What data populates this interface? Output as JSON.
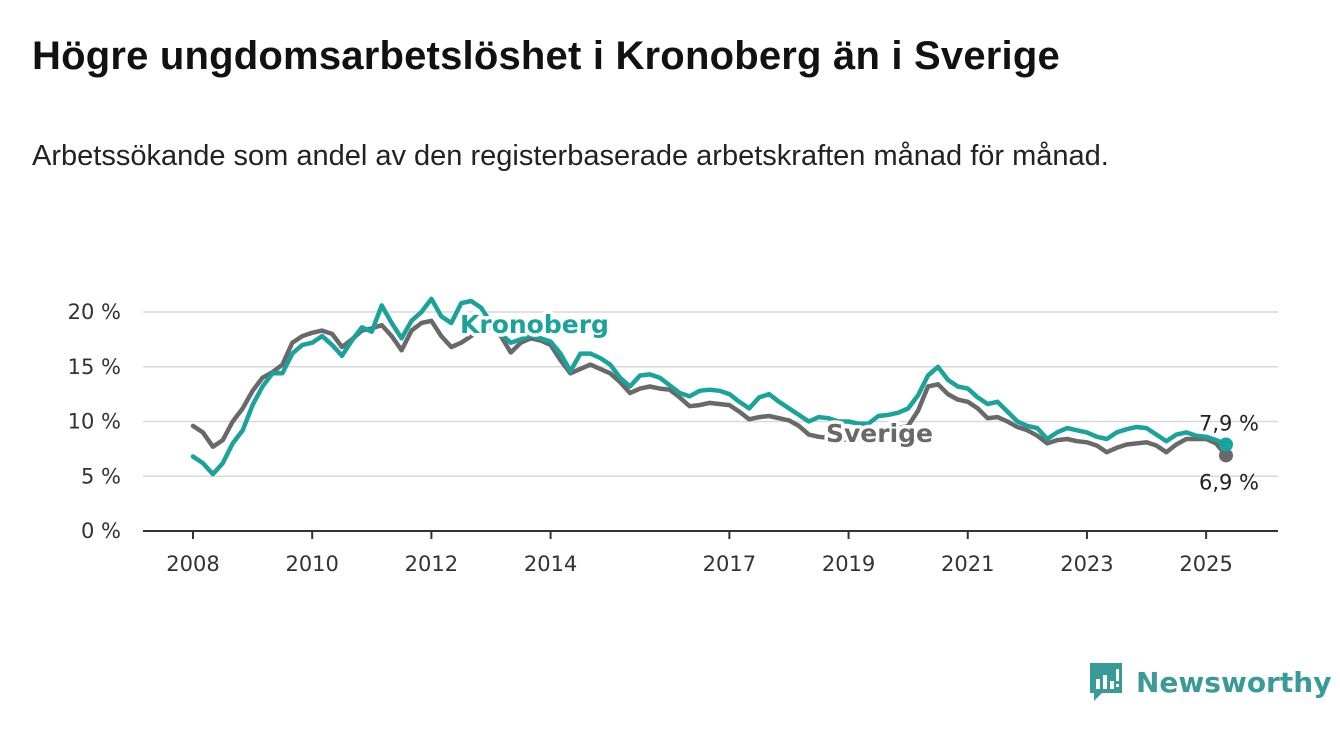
{
  "title": "Högre ungdomsarbetslöshet i Kronoberg än i Sverige",
  "subtitle": "Arbetssökande som andel av den registerbaserade arbetskraften månad för månad.",
  "brand": {
    "name": "Newsworthy",
    "icon": "newsworthy-logo-icon",
    "color": "#3a9a98"
  },
  "chart_data": {
    "type": "line",
    "x_unit": "month",
    "ylim": [
      0,
      20
    ],
    "yticks": [
      0,
      5,
      10,
      15,
      20
    ],
    "ytick_labels": [
      "0 %",
      "5 %",
      "10 %",
      "15 %",
      "20 %"
    ],
    "xticks": [
      "2008",
      "2010",
      "2012",
      "2014",
      "2017",
      "2019",
      "2021",
      "2023",
      "2025"
    ],
    "grid": true,
    "series": [
      {
        "name": "Sverige",
        "color": "#696969",
        "end_label": "6,9 %",
        "points": [
          [
            "2008-01",
            9.6
          ],
          [
            "2008-03",
            9.0
          ],
          [
            "2008-05",
            7.7
          ],
          [
            "2008-07",
            8.3
          ],
          [
            "2008-09",
            10.0
          ],
          [
            "2008-11",
            11.2
          ],
          [
            "2009-01",
            12.8
          ],
          [
            "2009-03",
            14.0
          ],
          [
            "2009-05",
            14.5
          ],
          [
            "2009-07",
            15.2
          ],
          [
            "2009-09",
            17.2
          ],
          [
            "2009-11",
            17.8
          ],
          [
            "2010-01",
            18.1
          ],
          [
            "2010-03",
            18.3
          ],
          [
            "2010-05",
            18.0
          ],
          [
            "2010-07",
            16.8
          ],
          [
            "2010-09",
            17.5
          ],
          [
            "2010-11",
            18.3
          ],
          [
            "2011-01",
            18.5
          ],
          [
            "2011-03",
            18.8
          ],
          [
            "2011-05",
            17.8
          ],
          [
            "2011-07",
            16.5
          ],
          [
            "2011-09",
            18.3
          ],
          [
            "2011-11",
            19.0
          ],
          [
            "2012-01",
            19.2
          ],
          [
            "2012-03",
            17.8
          ],
          [
            "2012-05",
            16.8
          ],
          [
            "2012-07",
            17.2
          ],
          [
            "2012-09",
            17.8
          ],
          [
            "2012-11",
            18.4
          ],
          [
            "2013-01",
            18.6
          ],
          [
            "2013-03",
            17.8
          ],
          [
            "2013-05",
            16.3
          ],
          [
            "2013-07",
            17.2
          ],
          [
            "2013-09",
            17.6
          ],
          [
            "2013-11",
            17.4
          ],
          [
            "2014-01",
            17.0
          ],
          [
            "2014-03",
            15.6
          ],
          [
            "2014-05",
            14.4
          ],
          [
            "2014-07",
            14.8
          ],
          [
            "2014-09",
            15.2
          ],
          [
            "2014-11",
            14.8
          ],
          [
            "2015-01",
            14.4
          ],
          [
            "2015-03",
            13.6
          ],
          [
            "2015-05",
            12.6
          ],
          [
            "2015-07",
            13.0
          ],
          [
            "2015-09",
            13.2
          ],
          [
            "2015-11",
            13.0
          ],
          [
            "2016-01",
            12.9
          ],
          [
            "2016-03",
            12.2
          ],
          [
            "2016-05",
            11.4
          ],
          [
            "2016-07",
            11.5
          ],
          [
            "2016-09",
            11.7
          ],
          [
            "2016-11",
            11.6
          ],
          [
            "2017-01",
            11.5
          ],
          [
            "2017-03",
            10.9
          ],
          [
            "2017-05",
            10.2
          ],
          [
            "2017-07",
            10.4
          ],
          [
            "2017-09",
            10.5
          ],
          [
            "2017-11",
            10.3
          ],
          [
            "2018-01",
            10.1
          ],
          [
            "2018-03",
            9.6
          ],
          [
            "2018-05",
            8.8
          ],
          [
            "2018-07",
            8.6
          ],
          [
            "2018-09",
            8.5
          ],
          [
            "2018-11",
            8.4
          ],
          [
            "2019-01",
            8.3
          ],
          [
            "2019-03",
            8.4
          ],
          [
            "2019-05",
            8.6
          ],
          [
            "2019-07",
            8.9
          ],
          [
            "2019-09",
            9.3
          ],
          [
            "2019-11",
            9.4
          ],
          [
            "2020-01",
            9.6
          ],
          [
            "2020-03",
            11.0
          ],
          [
            "2020-05",
            13.2
          ],
          [
            "2020-07",
            13.4
          ],
          [
            "2020-09",
            12.5
          ],
          [
            "2020-11",
            12.0
          ],
          [
            "2021-01",
            11.8
          ],
          [
            "2021-03",
            11.2
          ],
          [
            "2021-05",
            10.3
          ],
          [
            "2021-07",
            10.4
          ],
          [
            "2021-09",
            10.0
          ],
          [
            "2021-11",
            9.5
          ],
          [
            "2022-01",
            9.2
          ],
          [
            "2022-03",
            8.7
          ],
          [
            "2022-05",
            8.0
          ],
          [
            "2022-07",
            8.3
          ],
          [
            "2022-09",
            8.4
          ],
          [
            "2022-11",
            8.2
          ],
          [
            "2023-01",
            8.1
          ],
          [
            "2023-03",
            7.8
          ],
          [
            "2023-05",
            7.2
          ],
          [
            "2023-07",
            7.6
          ],
          [
            "2023-09",
            7.9
          ],
          [
            "2023-11",
            8.0
          ],
          [
            "2024-01",
            8.1
          ],
          [
            "2024-03",
            7.8
          ],
          [
            "2024-05",
            7.2
          ],
          [
            "2024-07",
            7.9
          ],
          [
            "2024-09",
            8.4
          ],
          [
            "2024-11",
            8.4
          ],
          [
            "2025-01",
            8.4
          ],
          [
            "2025-03",
            8.0
          ],
          [
            "2025-05",
            6.9
          ]
        ]
      },
      {
        "name": "Kronoberg",
        "color": "#1aa39a",
        "end_label": "7,9 %",
        "points": [
          [
            "2008-01",
            6.8
          ],
          [
            "2008-03",
            6.2
          ],
          [
            "2008-05",
            5.2
          ],
          [
            "2008-07",
            6.2
          ],
          [
            "2008-09",
            8.0
          ],
          [
            "2008-11",
            9.2
          ],
          [
            "2009-01",
            11.5
          ],
          [
            "2009-03",
            13.2
          ],
          [
            "2009-05",
            14.4
          ],
          [
            "2009-07",
            14.4
          ],
          [
            "2009-09",
            16.2
          ],
          [
            "2009-11",
            17.0
          ],
          [
            "2010-01",
            17.2
          ],
          [
            "2010-03",
            17.8
          ],
          [
            "2010-05",
            17.0
          ],
          [
            "2010-07",
            16.0
          ],
          [
            "2010-09",
            17.4
          ],
          [
            "2010-11",
            18.6
          ],
          [
            "2011-01",
            18.2
          ],
          [
            "2011-03",
            20.6
          ],
          [
            "2011-05",
            19.0
          ],
          [
            "2011-07",
            17.6
          ],
          [
            "2011-09",
            19.2
          ],
          [
            "2011-11",
            20.0
          ],
          [
            "2012-01",
            21.2
          ],
          [
            "2012-03",
            19.6
          ],
          [
            "2012-05",
            19.0
          ],
          [
            "2012-07",
            20.8
          ],
          [
            "2012-09",
            21.0
          ],
          [
            "2012-11",
            20.4
          ],
          [
            "2013-01",
            19.0
          ],
          [
            "2013-03",
            18.0
          ],
          [
            "2013-05",
            17.2
          ],
          [
            "2013-07",
            17.5
          ],
          [
            "2013-09",
            17.9
          ],
          [
            "2013-11",
            17.6
          ],
          [
            "2014-01",
            17.3
          ],
          [
            "2014-03",
            16.2
          ],
          [
            "2014-05",
            14.6
          ],
          [
            "2014-07",
            16.2
          ],
          [
            "2014-09",
            16.2
          ],
          [
            "2014-11",
            15.8
          ],
          [
            "2015-01",
            15.2
          ],
          [
            "2015-03",
            14.0
          ],
          [
            "2015-05",
            13.2
          ],
          [
            "2015-07",
            14.2
          ],
          [
            "2015-09",
            14.3
          ],
          [
            "2015-11",
            14.0
          ],
          [
            "2016-01",
            13.3
          ],
          [
            "2016-03",
            12.6
          ],
          [
            "2016-05",
            12.3
          ],
          [
            "2016-07",
            12.8
          ],
          [
            "2016-09",
            12.9
          ],
          [
            "2016-11",
            12.8
          ],
          [
            "2017-01",
            12.5
          ],
          [
            "2017-03",
            11.8
          ],
          [
            "2017-05",
            11.2
          ],
          [
            "2017-07",
            12.2
          ],
          [
            "2017-09",
            12.5
          ],
          [
            "2017-11",
            11.8
          ],
          [
            "2018-01",
            11.2
          ],
          [
            "2018-03",
            10.6
          ],
          [
            "2018-05",
            10.0
          ],
          [
            "2018-07",
            10.4
          ],
          [
            "2018-09",
            10.3
          ],
          [
            "2018-11",
            10.0
          ],
          [
            "2019-01",
            10.0
          ],
          [
            "2019-03",
            9.8
          ],
          [
            "2019-05",
            9.8
          ],
          [
            "2019-07",
            10.5
          ],
          [
            "2019-09",
            10.6
          ],
          [
            "2019-11",
            10.8
          ],
          [
            "2020-01",
            11.2
          ],
          [
            "2020-03",
            12.4
          ],
          [
            "2020-05",
            14.2
          ],
          [
            "2020-07",
            15.0
          ],
          [
            "2020-09",
            13.8
          ],
          [
            "2020-11",
            13.2
          ],
          [
            "2021-01",
            13.0
          ],
          [
            "2021-03",
            12.2
          ],
          [
            "2021-05",
            11.6
          ],
          [
            "2021-07",
            11.8
          ],
          [
            "2021-09",
            10.9
          ],
          [
            "2021-11",
            10.0
          ],
          [
            "2022-01",
            9.6
          ],
          [
            "2022-03",
            9.4
          ],
          [
            "2022-05",
            8.4
          ],
          [
            "2022-07",
            9.0
          ],
          [
            "2022-09",
            9.4
          ],
          [
            "2022-11",
            9.2
          ],
          [
            "2023-01",
            9.0
          ],
          [
            "2023-03",
            8.6
          ],
          [
            "2023-05",
            8.4
          ],
          [
            "2023-07",
            9.0
          ],
          [
            "2023-09",
            9.3
          ],
          [
            "2023-11",
            9.5
          ],
          [
            "2024-01",
            9.4
          ],
          [
            "2024-03",
            8.8
          ],
          [
            "2024-05",
            8.2
          ],
          [
            "2024-07",
            8.8
          ],
          [
            "2024-09",
            9.0
          ],
          [
            "2024-11",
            8.7
          ],
          [
            "2025-01",
            8.6
          ],
          [
            "2025-03",
            8.3
          ],
          [
            "2025-05",
            7.9
          ]
        ]
      }
    ]
  }
}
